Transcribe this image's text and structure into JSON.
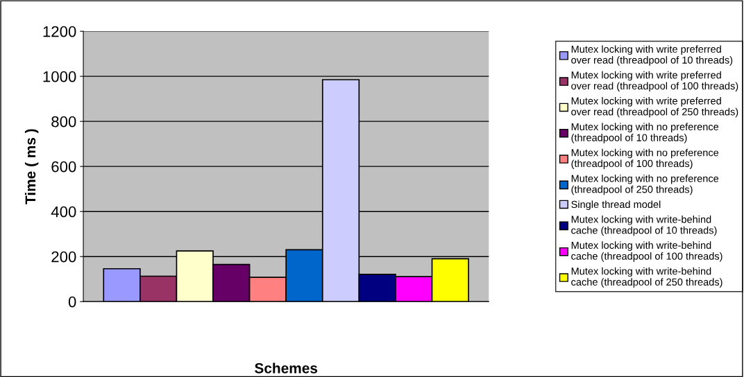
{
  "chart_data": {
    "type": "bar",
    "xlabel": "Schemes",
    "ylabel": "Time ( ms )",
    "categories": [
      null
    ],
    "series": [
      {
        "name": "Mutex locking with write preferred over read (threadpool of 10 threads)",
        "color": "#9999ff",
        "values": [
          146
        ]
      },
      {
        "name": "Mutex locking with write preferred over read (threadpool of 100 threads)",
        "color": "#993366",
        "values": [
          113
        ]
      },
      {
        "name": "Mutex locking with write preferred over read (threadpool of 250 threads)",
        "color": "#ffffcc",
        "values": [
          225
        ]
      },
      {
        "name": "Mutex locking with no preference (threadpool of 10 threads)",
        "color": "#660066",
        "values": [
          165
        ]
      },
      {
        "name": "Mutex locking with no preference (threadpool of 100 threads)",
        "color": "#ff8080",
        "values": [
          108
        ]
      },
      {
        "name": "Mutex locking with no preference (threadpool of 250 threads)",
        "color": "#0066cc",
        "values": [
          230
        ]
      },
      {
        "name": "Single thread model",
        "color": "#ccccff",
        "values": [
          985
        ]
      },
      {
        "name": "Mutex locking with write-behind cache (threadpool of 10 threads)",
        "color": "#000080",
        "values": [
          121
        ]
      },
      {
        "name": "Mutex locking with write-behind cache (threadpool of 100 threads)",
        "color": "#ff00ff",
        "values": [
          111
        ]
      },
      {
        "name": "Mutex locking with write-behind cache (threadpool of 250 threads)",
        "color": "#ffff00",
        "values": [
          190
        ]
      }
    ],
    "ylim": [
      0,
      1200
    ],
    "yticks": [
      0,
      200,
      400,
      600,
      800,
      1000,
      1200
    ],
    "grid": "y",
    "legend": "right"
  }
}
